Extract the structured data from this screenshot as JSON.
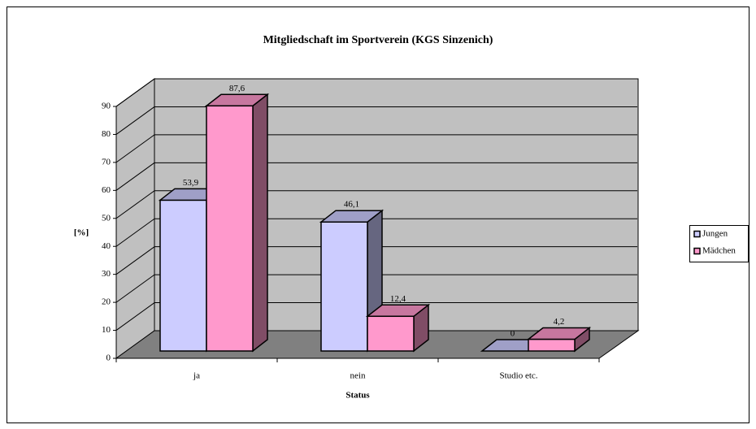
{
  "chart_data": {
    "type": "bar3d",
    "title": "Mitgliedschaft im Sportverein (KGS Sinzenich)",
    "x_label": "Status",
    "y_label": "[%]",
    "categories": [
      "ja",
      "nein",
      "Studio etc."
    ],
    "series": [
      {
        "name": "Jungen",
        "color": "#ccccff",
        "values": [
          53.9,
          46.1,
          0
        ],
        "value_labels": [
          "53,9",
          "46,1",
          "0"
        ]
      },
      {
        "name": "Mädchen",
        "color": "#ff99cc",
        "values": [
          87.6,
          12.4,
          4.2
        ],
        "value_labels": [
          "87,6",
          "12,4",
          "4,2"
        ]
      }
    ],
    "ylim": [
      0,
      90
    ],
    "yticks": [
      0,
      10,
      20,
      30,
      40,
      50,
      60,
      70,
      80,
      90
    ],
    "grid": true,
    "legend": "right"
  }
}
